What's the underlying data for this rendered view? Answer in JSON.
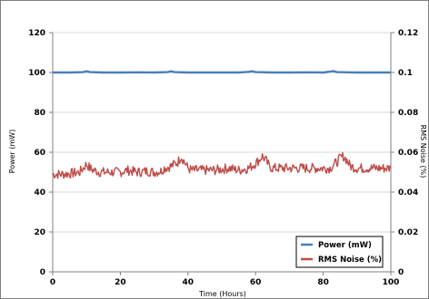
{
  "chart_data": {
    "type": "line",
    "xlabel": "Time (Hours)",
    "ylabel_left": "Power (mW)",
    "ylabel_right": "RMS Noise (%)",
    "xlim": [
      0,
      100
    ],
    "ylim_left": [
      0,
      120
    ],
    "ylim_right": [
      0,
      0.12
    ],
    "x_ticks": [
      "0",
      "20",
      "40",
      "60",
      "80",
      "100"
    ],
    "y_ticks_left": [
      "0",
      "20",
      "40",
      "60",
      "80",
      "100",
      "120"
    ],
    "y_ticks_right": [
      "0",
      "0.02",
      "0.04",
      "0.06",
      "0.08",
      "0.1",
      "0.12"
    ],
    "grid": true,
    "legend_position": "bottom-right",
    "series": [
      {
        "name": "Power (mW)",
        "axis": "left",
        "color": "#4a7ebb",
        "x": [
          0,
          5,
          9,
          10,
          11,
          15,
          20,
          25,
          30,
          34,
          35,
          36,
          40,
          45,
          50,
          55,
          58,
          59,
          60,
          65,
          70,
          75,
          80,
          82,
          83,
          84,
          90,
          95,
          100
        ],
        "y": [
          100,
          100,
          100.2,
          100.6,
          100.2,
          100,
          100,
          100.1,
          100,
          100.2,
          100.6,
          100.2,
          100,
          100,
          100,
          100,
          100.3,
          100.6,
          100.2,
          100,
          100,
          100.1,
          100,
          100.4,
          100.7,
          100.2,
          100,
          100,
          100
        ]
      },
      {
        "name": "RMS Noise (%)",
        "axis": "right",
        "color": "#be4b48",
        "x": [
          0,
          3,
          6,
          8,
          9,
          10,
          11,
          12,
          14,
          16,
          18,
          20,
          22,
          25,
          28,
          30,
          32,
          33,
          35,
          37,
          38,
          39,
          40,
          41,
          42,
          45,
          48,
          50,
          52,
          55,
          58,
          60,
          61,
          62,
          63,
          64,
          65,
          68,
          70,
          72,
          75,
          78,
          80,
          82,
          84,
          85,
          86,
          87,
          88,
          90,
          92,
          95,
          98,
          100
        ],
        "y": [
          0.049,
          0.049,
          0.0495,
          0.05,
          0.052,
          0.054,
          0.052,
          0.051,
          0.05,
          0.05,
          0.05,
          0.05,
          0.051,
          0.05,
          0.0505,
          0.05,
          0.0505,
          0.052,
          0.053,
          0.055,
          0.058,
          0.055,
          0.052,
          0.051,
          0.051,
          0.051,
          0.051,
          0.0515,
          0.052,
          0.051,
          0.052,
          0.0545,
          0.056,
          0.058,
          0.056,
          0.053,
          0.052,
          0.052,
          0.052,
          0.052,
          0.052,
          0.052,
          0.052,
          0.052,
          0.055,
          0.057,
          0.058,
          0.056,
          0.053,
          0.052,
          0.052,
          0.052,
          0.052,
          0.052
        ]
      }
    ]
  }
}
